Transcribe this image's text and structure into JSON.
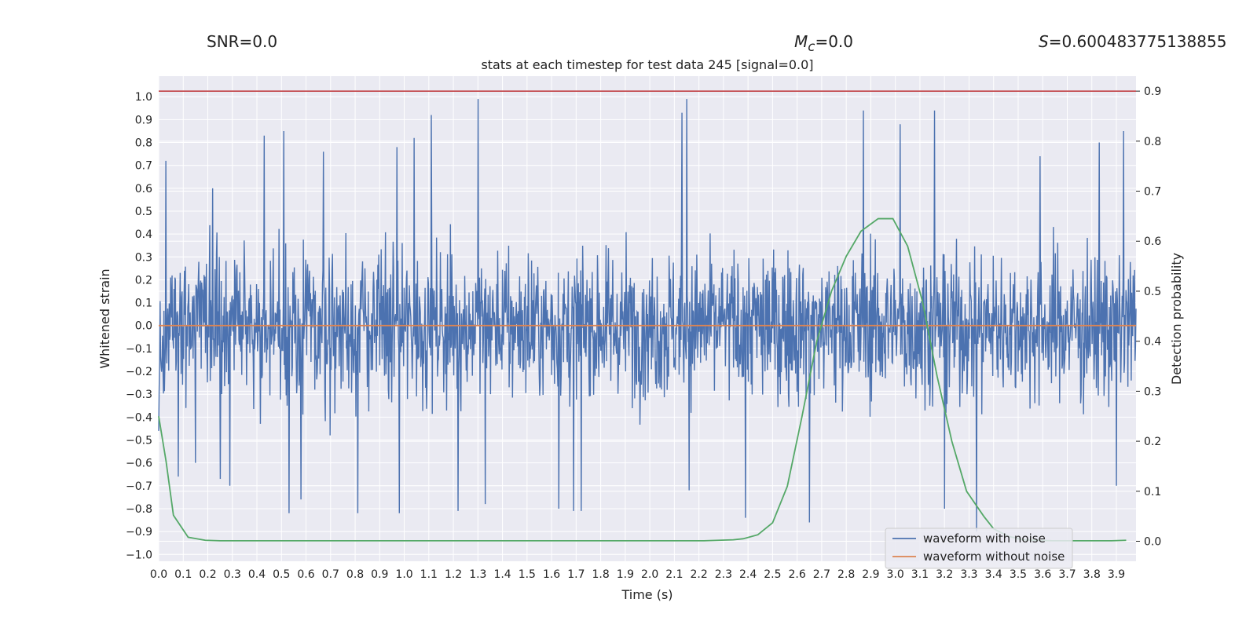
{
  "header": {
    "snr_text": "SNR=0.0",
    "mc_symbol": "M",
    "mc_sub": "c",
    "mc_value": "=0.0",
    "s_symbol": "S",
    "s_value": "=0.600483775138855"
  },
  "chart_data": {
    "type": "line",
    "title": "stats at each timestep for test data 245 [signal=0.0]",
    "xlabel": "Time (s)",
    "ylabel_left": "Whitened strain",
    "ylabel_right": "Detection probability",
    "xlim": [
      0.0,
      3.98
    ],
    "ylim_left": [
      -1.03,
      1.09
    ],
    "ylim_right": [
      -0.04,
      0.93
    ],
    "x_ticks": [
      0.0,
      0.1,
      0.2,
      0.3,
      0.4,
      0.5,
      0.6,
      0.7,
      0.8,
      0.9,
      1.0,
      1.1,
      1.2,
      1.3,
      1.4,
      1.5,
      1.6,
      1.7,
      1.8,
      1.9,
      2.0,
      2.1,
      2.2,
      2.3,
      2.4,
      2.5,
      2.6,
      2.7,
      2.8,
      2.9,
      3.0,
      3.1,
      3.2,
      3.3,
      3.4,
      3.5,
      3.6,
      3.7,
      3.8,
      3.9
    ],
    "x_tick_labels": [
      "0.0",
      "0.1",
      "0.2",
      "0.3",
      "0.4",
      "0.5",
      "0.6",
      "0.7",
      "0.8",
      "0.9",
      "1.0",
      "1.1",
      "1.2",
      "1.3",
      "1.4",
      "1.5",
      "1.6",
      "1.7",
      "1.8",
      "1.9",
      "2.0",
      "2.1",
      "2.2",
      "2.3",
      "2.4",
      "2.5",
      "2.6",
      "2.7",
      "2.8",
      "2.9",
      "3.0",
      "3.1",
      "3.2",
      "3.3",
      "3.4",
      "3.5",
      "3.6",
      "3.7",
      "3.8",
      "3.9"
    ],
    "y_left_ticks": [
      1.0,
      0.9,
      0.8,
      0.7,
      0.6,
      0.5,
      0.4,
      0.3,
      0.2,
      0.1,
      0.0,
      -0.1,
      -0.2,
      -0.3,
      -0.4,
      -0.5,
      -0.6,
      -0.7,
      -0.8,
      -0.9,
      -1.0
    ],
    "y_left_tick_labels": [
      "1.0",
      "0.9",
      "0.8",
      "0.7",
      "0.6",
      "0.5",
      "0.4",
      "0.3",
      "0.2",
      "0.1",
      "0.0",
      "−0.1",
      "−0.2",
      "−0.3",
      "−0.4",
      "−0.5",
      "−0.6",
      "−0.7",
      "−0.8",
      "−0.9",
      "−1.0"
    ],
    "y_right_ticks": [
      0.9,
      0.8,
      0.7,
      0.6,
      0.5,
      0.4,
      0.3,
      0.2,
      0.1,
      0.0
    ],
    "y_right_tick_labels": [
      "0.9",
      "0.8",
      "0.7",
      "0.6",
      "0.5",
      "0.4",
      "0.3",
      "0.2",
      "0.1",
      "0.0"
    ],
    "grid": true,
    "legend_position": "bottom-right",
    "series": [
      {
        "name": "waveform with noise",
        "axis": "left",
        "color": "#4c72b0",
        "kind": "noise",
        "n_samples": 2048,
        "typical_range": [
          -0.45,
          0.45
        ],
        "observed_max": 0.99,
        "observed_min": -0.9,
        "spikes": [
          {
            "x": 0.0,
            "y": 0.62
          },
          {
            "x": 0.0,
            "y": -0.46
          },
          {
            "x": 0.03,
            "y": 0.72
          },
          {
            "x": 0.08,
            "y": -0.66
          },
          {
            "x": 0.15,
            "y": -0.6
          },
          {
            "x": 0.22,
            "y": 0.6
          },
          {
            "x": 0.25,
            "y": -0.67
          },
          {
            "x": 0.29,
            "y": -0.7
          },
          {
            "x": 0.43,
            "y": 0.83
          },
          {
            "x": 0.51,
            "y": 0.85
          },
          {
            "x": 0.53,
            "y": -0.82
          },
          {
            "x": 0.58,
            "y": -0.76
          },
          {
            "x": 0.67,
            "y": 0.76
          },
          {
            "x": 0.81,
            "y": -0.82
          },
          {
            "x": 0.97,
            "y": 0.78
          },
          {
            "x": 0.98,
            "y": -0.82
          },
          {
            "x": 1.04,
            "y": 0.82
          },
          {
            "x": 1.11,
            "y": 0.92
          },
          {
            "x": 1.22,
            "y": -0.81
          },
          {
            "x": 1.3,
            "y": 0.99
          },
          {
            "x": 1.33,
            "y": -0.78
          },
          {
            "x": 1.63,
            "y": -0.8
          },
          {
            "x": 1.69,
            "y": -0.81
          },
          {
            "x": 1.72,
            "y": -0.81
          },
          {
            "x": 2.13,
            "y": 0.93
          },
          {
            "x": 2.15,
            "y": 0.99
          },
          {
            "x": 2.16,
            "y": -0.72
          },
          {
            "x": 2.39,
            "y": -0.84
          },
          {
            "x": 2.65,
            "y": -0.86
          },
          {
            "x": 2.87,
            "y": 0.94
          },
          {
            "x": 3.02,
            "y": 0.88
          },
          {
            "x": 3.16,
            "y": 0.94
          },
          {
            "x": 3.2,
            "y": -0.8
          },
          {
            "x": 3.33,
            "y": -0.9
          },
          {
            "x": 3.59,
            "y": 0.74
          },
          {
            "x": 3.83,
            "y": 0.8
          },
          {
            "x": 3.9,
            "y": -0.7
          },
          {
            "x": 3.93,
            "y": 0.85
          }
        ]
      },
      {
        "name": "waveform without noise",
        "axis": "left",
        "color": "#dd8452",
        "x": [
          0.0,
          3.98
        ],
        "y": [
          0.0,
          0.0
        ]
      },
      {
        "name": "detection probability",
        "axis": "right",
        "color": "#55a868",
        "x": [
          0.0,
          0.03,
          0.06,
          0.12,
          0.19,
          0.25,
          0.31,
          0.37,
          0.43,
          0.49,
          0.56,
          0.62,
          0.68,
          0.74,
          0.8,
          0.86,
          0.93,
          0.99,
          1.05,
          1.11,
          1.17,
          1.23,
          1.3,
          1.36,
          1.42,
          1.48,
          1.54,
          1.6,
          1.67,
          1.73,
          1.79,
          1.85,
          1.91,
          1.97,
          2.04,
          2.1,
          2.16,
          2.22,
          2.28,
          2.34,
          2.38,
          2.44,
          2.5,
          2.56,
          2.62,
          2.68,
          2.74,
          2.8,
          2.86,
          2.93,
          2.99,
          3.05,
          3.11,
          3.17,
          3.23,
          3.29,
          3.36,
          3.4,
          3.46,
          3.52,
          3.58,
          3.64,
          3.7,
          3.76,
          3.82,
          3.88,
          3.94
        ],
        "y": [
          0.25,
          0.16,
          0.052,
          0.008,
          0.002,
          0.001,
          0.001,
          0.001,
          0.001,
          0.001,
          0.001,
          0.001,
          0.001,
          0.001,
          0.001,
          0.001,
          0.001,
          0.001,
          0.001,
          0.001,
          0.001,
          0.001,
          0.001,
          0.001,
          0.001,
          0.001,
          0.001,
          0.001,
          0.001,
          0.001,
          0.001,
          0.001,
          0.001,
          0.001,
          0.001,
          0.001,
          0.001,
          0.001,
          0.002,
          0.003,
          0.005,
          0.013,
          0.037,
          0.11,
          0.25,
          0.4,
          0.5,
          0.57,
          0.62,
          0.645,
          0.645,
          0.59,
          0.48,
          0.33,
          0.2,
          0.1,
          0.05,
          0.025,
          0.01,
          0.003,
          0.002,
          0.001,
          0.001,
          0.001,
          0.001,
          0.001,
          0.002
        ]
      },
      {
        "name": "threshold",
        "axis": "right",
        "color": "#c44e52",
        "x": [
          0.0,
          3.98
        ],
        "y": [
          0.9,
          0.9
        ]
      }
    ],
    "legend": [
      "waveform with noise",
      "waveform without noise"
    ]
  }
}
